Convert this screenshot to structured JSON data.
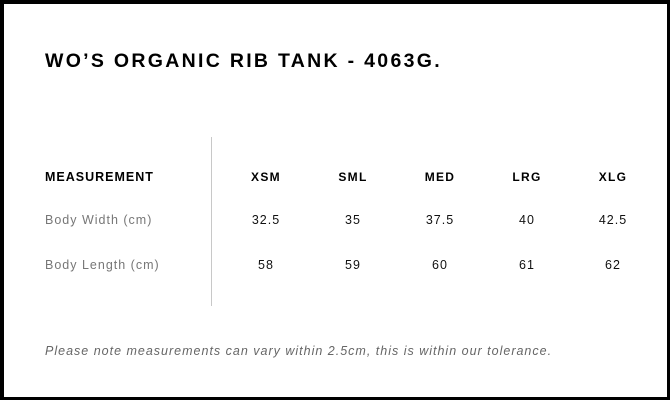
{
  "title": "WO’S ORGANIC RIB TANK - 4063G.",
  "table": {
    "header_label": "MEASUREMENT",
    "sizes": [
      "XSM",
      "SML",
      "MED",
      "LRG",
      "XLG"
    ],
    "rows": [
      {
        "label": "Body Width (cm)",
        "values": [
          "32.5",
          "35",
          "37.5",
          "40",
          "42.5"
        ]
      },
      {
        "label": "Body Length (cm)",
        "values": [
          "58",
          "59",
          "60",
          "61",
          "62"
        ]
      }
    ]
  },
  "note": "Please note measurements can vary within 2.5cm, this is within our tolerance."
}
